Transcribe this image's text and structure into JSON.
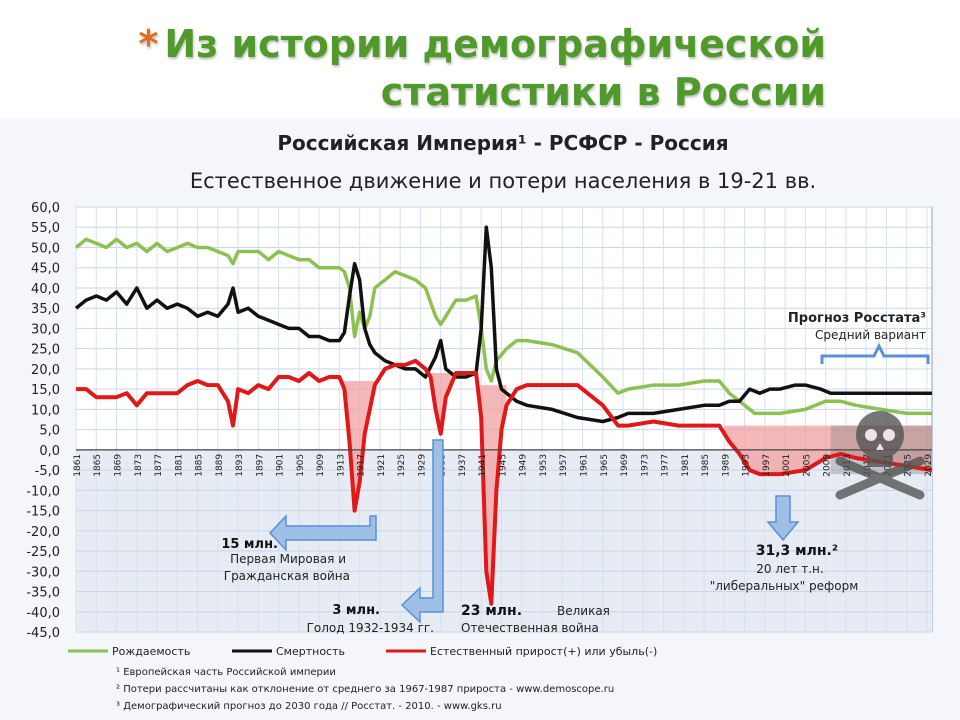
{
  "slide": {
    "bullet": "*",
    "title_line1": "Из истории демографической",
    "title_line2": "статистики в России"
  },
  "colors": {
    "birth": "#8cc152",
    "death": "#111111",
    "natural": "#e01818",
    "accent_blue": "#5b8fd6",
    "title_green": "#4f9a2b"
  },
  "chart_data": {
    "type": "line",
    "title": "Российская Империя¹ - РСФСР - Россия",
    "subtitle": "Естественное движение и потери населения в 19-21 вв.",
    "ylim": [
      -45,
      60
    ],
    "yticks": [
      "60,0",
      "55,0",
      "50,0",
      "45,0",
      "40,0",
      "35,0",
      "30,0",
      "25,0",
      "20,0",
      "15,0",
      "10,0",
      "5,0",
      "0,0",
      "-5,0",
      "-10,0",
      "-15,0",
      "-20,0",
      "-25,0",
      "-30,0",
      "-35,0",
      "-40,0",
      "-45,0"
    ],
    "xlim": [
      1861,
      2030
    ],
    "xticks": [
      "1861",
      "1865",
      "1869",
      "1873",
      "1877",
      "1881",
      "1885",
      "1889",
      "1893",
      "1897",
      "1901",
      "1905",
      "1909",
      "1913",
      "1917",
      "1921",
      "1925",
      "1929",
      "1933",
      "1937",
      "1941",
      "1945",
      "1949",
      "1953",
      "1957",
      "1961",
      "1965",
      "1969",
      "1973",
      "1977",
      "1981",
      "1985",
      "1989",
      "1993",
      "1997",
      "2001",
      "2005",
      "2009",
      "2013",
      "2017",
      "2021",
      "2025",
      "2029"
    ],
    "forecast_start": 2010,
    "series": [
      {
        "name": "Рождаемость",
        "color": "#8cc152",
        "x": [
          1861,
          1863,
          1865,
          1867,
          1869,
          1871,
          1873,
          1875,
          1877,
          1879,
          1881,
          1883,
          1885,
          1887,
          1889,
          1891,
          1892,
          1893,
          1895,
          1897,
          1899,
          1901,
          1903,
          1905,
          1907,
          1909,
          1911,
          1913,
          1914,
          1915,
          1916,
          1917,
          1918,
          1919,
          1920,
          1922,
          1924,
          1926,
          1928,
          1930,
          1932,
          1933,
          1934,
          1936,
          1938,
          1940,
          1941,
          1942,
          1943,
          1944,
          1946,
          1948,
          1950,
          1955,
          1960,
          1965,
          1968,
          1970,
          1975,
          1980,
          1985,
          1988,
          1990,
          1993,
          1995,
          1998,
          2000,
          2005,
          2009,
          2012,
          2015,
          2020,
          2025,
          2030
        ],
        "y": [
          50,
          52,
          51,
          50,
          52,
          50,
          51,
          49,
          51,
          49,
          50,
          51,
          50,
          50,
          49,
          48,
          46,
          49,
          49,
          49,
          47,
          49,
          48,
          47,
          47,
          45,
          45,
          45,
          44,
          40,
          28,
          34,
          30,
          33,
          40,
          42,
          44,
          43,
          42,
          40,
          33,
          31,
          33,
          37,
          37,
          38,
          30,
          20,
          17,
          22,
          25,
          27,
          27,
          26,
          24,
          18,
          14,
          15,
          16,
          16,
          17,
          17,
          14,
          11,
          9,
          9,
          9,
          10,
          12,
          12,
          11,
          10,
          9,
          9
        ]
      },
      {
        "name": "Смертность",
        "color": "#111111",
        "x": [
          1861,
          1863,
          1865,
          1867,
          1869,
          1871,
          1873,
          1875,
          1877,
          1879,
          1881,
          1883,
          1885,
          1887,
          1889,
          1891,
          1892,
          1893,
          1895,
          1897,
          1899,
          1901,
          1903,
          1905,
          1907,
          1909,
          1911,
          1913,
          1914,
          1915,
          1916,
          1917,
          1918,
          1919,
          1920,
          1922,
          1924,
          1926,
          1928,
          1930,
          1932,
          1933,
          1934,
          1936,
          1938,
          1940,
          1941,
          1942,
          1943,
          1944,
          1945,
          1946,
          1948,
          1950,
          1955,
          1960,
          1965,
          1968,
          1970,
          1975,
          1980,
          1985,
          1988,
          1990,
          1992,
          1994,
          1996,
          1998,
          2000,
          2003,
          2005,
          2008,
          2010,
          2015,
          2020,
          2025,
          2030
        ],
        "y": [
          35,
          37,
          38,
          37,
          39,
          36,
          40,
          35,
          37,
          35,
          36,
          35,
          33,
          34,
          33,
          36,
          40,
          34,
          35,
          33,
          32,
          31,
          30,
          30,
          28,
          28,
          27,
          27,
          29,
          38,
          46,
          42,
          30,
          26,
          24,
          22,
          21,
          20,
          20,
          18,
          23,
          27,
          20,
          18,
          18,
          19,
          30,
          55,
          45,
          20,
          15,
          14,
          12,
          11,
          10,
          8,
          7,
          8,
          9,
          9,
          10,
          11,
          11,
          12,
          12,
          15,
          14,
          15,
          15,
          16,
          16,
          15,
          14,
          14,
          14,
          14,
          14
        ]
      },
      {
        "name": "Естественный прирост(+) или убыль(-)",
        "color": "#e01818",
        "x": [
          1861,
          1863,
          1865,
          1867,
          1869,
          1871,
          1873,
          1875,
          1877,
          1879,
          1881,
          1883,
          1885,
          1887,
          1889,
          1891,
          1892,
          1893,
          1895,
          1897,
          1899,
          1901,
          1903,
          1905,
          1907,
          1909,
          1911,
          1913,
          1914,
          1915,
          1916,
          1917,
          1918,
          1919,
          1920,
          1922,
          1924,
          1926,
          1928,
          1930,
          1931,
          1932,
          1933,
          1934,
          1936,
          1938,
          1940,
          1941,
          1942,
          1943,
          1944,
          1945,
          1946,
          1948,
          1950,
          1955,
          1960,
          1965,
          1968,
          1970,
          1975,
          1980,
          1985,
          1988,
          1990,
          1992,
          1994,
          1996,
          1998,
          2000,
          2005,
          2009,
          2012,
          2015,
          2020,
          2025,
          2030
        ],
        "y": [
          15,
          15,
          13,
          13,
          13,
          14,
          11,
          14,
          14,
          14,
          14,
          16,
          17,
          16,
          16,
          12,
          6,
          15,
          14,
          16,
          15,
          18,
          18,
          17,
          19,
          17,
          18,
          18,
          15,
          2,
          -15,
          -8,
          4,
          10,
          16,
          20,
          21,
          21,
          22,
          20,
          18,
          10,
          4,
          13,
          19,
          19,
          19,
          8,
          -30,
          -38,
          -10,
          5,
          11,
          15,
          16,
          16,
          16,
          11,
          6,
          6,
          7,
          6,
          6,
          6,
          2,
          -1,
          -5,
          -6,
          -6,
          -6,
          -5,
          -2,
          -1,
          -2,
          -3,
          -4,
          -5
        ]
      }
    ],
    "shaded_losses": [
      "Первая Мировая и Гражданская война",
      "Голод 1932-1934 гг.",
      "Великая Отечественная война",
      "20 лет т.н. \"либеральных\" реформ"
    ],
    "annotations": {
      "forecast_title": "Прогноз Росстата³",
      "forecast_sub": "Средний вариант",
      "ww1_loss": "15 млн.",
      "ww1_text1": "Первая Мировая и",
      "ww1_text2": "Гражданская война",
      "famine_loss": "3 млн.",
      "famine_text": "Голод 1932-1934 гг.",
      "ww2_loss": "23 млн.",
      "ww2_text1": "Великая",
      "ww2_text2": "Отечественная война",
      "reform_loss": "31,3 млн.²",
      "reform_text1": "20 лет т.н.",
      "reform_text2": "\"либеральных\" реформ"
    },
    "footnotes": [
      "¹ Европейская часть Российской империи",
      "² Потери рассчитаны как отклонение от среднего за 1967-1987 прироста - www.demoscope.ru",
      "³ Демографический прогноз до 2030 года // Росстат. - 2010. - www.gks.ru"
    ]
  }
}
